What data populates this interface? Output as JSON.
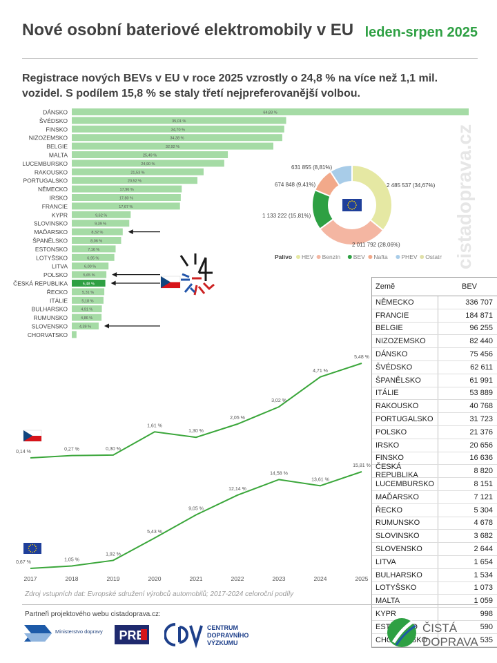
{
  "header": {
    "title": "Nové osobní bateriové elektromobily v EU",
    "period": "leden-srpen 2025",
    "subtitle_line1": "Registrace nových BEVs v EU v roce 2025 vzrostly o 24,8 % na více než 1,1 mil.",
    "subtitle_line2": "vozidel. S podílem 15,8 % se staly třetí nejpreferovanější volbou."
  },
  "watermark": "cistadoprava.cz",
  "colors": {
    "bar": "#a5dba5",
    "bar_highlight": "#2ea043",
    "line": "#3aa63a",
    "accent_green": "#2ea043"
  },
  "chart_data": [
    {
      "type": "bar",
      "orientation": "horizontal",
      "categories": [
        "DÁNSKO",
        "ŠVÉDSKO",
        "FINSKO",
        "NIZOZEMSKO",
        "BELGIE",
        "MALTA",
        "LUCEMBURSKO",
        "RAKOUSKO",
        "PORTUGALSKO",
        "NĚMECKO",
        "IRSKO",
        "FRANCIE",
        "KYPR",
        "SLOVINSKO",
        "MAĎARSKO",
        "ŠPANĚLSKO",
        "ESTONSKO",
        "LOTYŠSKO",
        "LITVA",
        "POLSKO",
        "ČESKÁ REPUBLIKA",
        "ŘECKO",
        "ITÁLIE",
        "BULHARSKO",
        "RUMUNSKO",
        "SLOVENSKO",
        "CHORVATSKO"
      ],
      "values": [
        64.83,
        35.01,
        34.7,
        34.38,
        32.92,
        25.49,
        24.9,
        21.53,
        20.52,
        17.96,
        17.8,
        17.67,
        9.62,
        9.39,
        8.32,
        8.06,
        7.16,
        6.95,
        6.0,
        5.65,
        5.48,
        5.31,
        5.18,
        4.91,
        4.86,
        4.39,
        0.77
      ],
      "data_labels": [
        "64,83 %",
        "35,01 %",
        "34,70 %",
        "34,38 %",
        "32,92 %",
        "25,49 %",
        "24,90 %",
        "21,53 %",
        "20,52 %",
        "17,96 %",
        "17,80 %",
        "17,67 %",
        "9,62 %",
        "9,39 %",
        "8,32 %",
        "8,06 %",
        "7,16 %",
        "6,95 %",
        "6,00 %",
        "5,65 %",
        "5,48 %",
        "5,31 %",
        "5,18 %",
        "4,91 %",
        "4,86 %",
        "4,39 %",
        ""
      ],
      "highlight": "ČESKÁ REPUBLIKA",
      "arrows_to": [
        "MAĎARSKO",
        "POLSKO",
        "ČESKÁ REPUBLIKA",
        "SLOVENSKO"
      ]
    },
    {
      "type": "pie",
      "donut": true,
      "labels": [
        "HEV",
        "Benzín",
        "BEV",
        "Nafta",
        "PHEV",
        "Ostatní"
      ],
      "values": [
        2485537,
        2011792,
        1133222,
        674848,
        631855,
        0
      ],
      "slice_labels": [
        "2 485 537 (34,67%)",
        "2 011 792 (28,06%)",
        "1 133 222 (15,81%)",
        "674 848 (9,41%)",
        "631 855 (8,81%)",
        ""
      ],
      "colors": [
        "#e5e8a3",
        "#f4b6a2",
        "#2ea043",
        "#f2a98a",
        "#a8cce8",
        "#e0e0a8"
      ],
      "legend_title": "Palivo",
      "legend_placement": "bottom"
    },
    {
      "type": "line",
      "x": [
        "2017",
        "2018",
        "2019",
        "2020",
        "2021",
        "2022",
        "2023",
        "2024",
        "2025"
      ],
      "series": [
        {
          "values": [
            0.14,
            0.27,
            0.3,
            1.61,
            1.3,
            2.05,
            3.02,
            4.71,
            5.48
          ],
          "data_labels": [
            "0,14 %",
            "0,27 %",
            "0,30 %",
            "1,61 %",
            "1,30 %",
            "2,05 %",
            "3,02 %",
            "4,71 %",
            "5,48 %"
          ]
        },
        {
          "values": [
            0.67,
            1.05,
            1.92,
            5.43,
            9.05,
            12.14,
            14.58,
            13.61,
            15.81
          ],
          "data_labels": [
            "0,67 %",
            "1,05 %",
            "1,92 %",
            "5,43 %",
            "9,05 %",
            "12,14 %",
            "14,58 %",
            "13,61 %",
            "15,81 %"
          ]
        }
      ],
      "source": "Zdroj vstupních dat: Evropské sdružení výrobců automobilů; 2017-2024 celoroční podíly"
    },
    {
      "type": "table",
      "columns": [
        "Země",
        "BEV"
      ],
      "rows": [
        [
          "NĚMECKO",
          "336 707"
        ],
        [
          "FRANCIE",
          "184 871"
        ],
        [
          "BELGIE",
          "96 255"
        ],
        [
          "NIZOZEMSKO",
          "82 440"
        ],
        [
          "DÁNSKO",
          "75 456"
        ],
        [
          "ŠVÉDSKO",
          "62 611"
        ],
        [
          "ŠPANĚLSKO",
          "61 991"
        ],
        [
          "ITÁLIE",
          "53 889"
        ],
        [
          "RAKOUSKO",
          "40 768"
        ],
        [
          "PORTUGALSKO",
          "31 723"
        ],
        [
          "POLSKO",
          "21 376"
        ],
        [
          "IRSKO",
          "20 656"
        ],
        [
          "FINSKO",
          "16 636"
        ],
        [
          "ČESKÁ REPUBLIKA",
          "8 820"
        ],
        [
          "LUCEMBURSKO",
          "8 151"
        ],
        [
          "MAĎARSKO",
          "7 121"
        ],
        [
          "ŘECKO",
          "5 304"
        ],
        [
          "RUMUNSKO",
          "4 678"
        ],
        [
          "SLOVINSKO",
          "3 682"
        ],
        [
          "SLOVENSKO",
          "2 644"
        ],
        [
          "LITVA",
          "1 654"
        ],
        [
          "BULHARSKO",
          "1 534"
        ],
        [
          "LOTYŠSKO",
          "1 073"
        ],
        [
          "MALTA",
          "1 059"
        ],
        [
          "KYPR",
          "998"
        ],
        [
          "ESTONSKO",
          "590"
        ],
        [
          "CHORVATSKO",
          "535"
        ]
      ]
    }
  ],
  "footer": {
    "partners_label": "Partneři projektového webu cistadoprava.cz:",
    "logo_md": "Ministerstvo dopravy",
    "logo_pre": "PRE",
    "logo_cdv_1": "CENTRUM",
    "logo_cdv_2": "DOPRAVNÍHO",
    "logo_cdv_3": "VÝZKUMU",
    "logo_cista_1": "ČISTÁ",
    "logo_cista_2": "DOPRAVA"
  },
  "icons": [
    "cz-flag-icon",
    "eu-flag-icon",
    "arrow-icon",
    "ev-logo-icon"
  ]
}
